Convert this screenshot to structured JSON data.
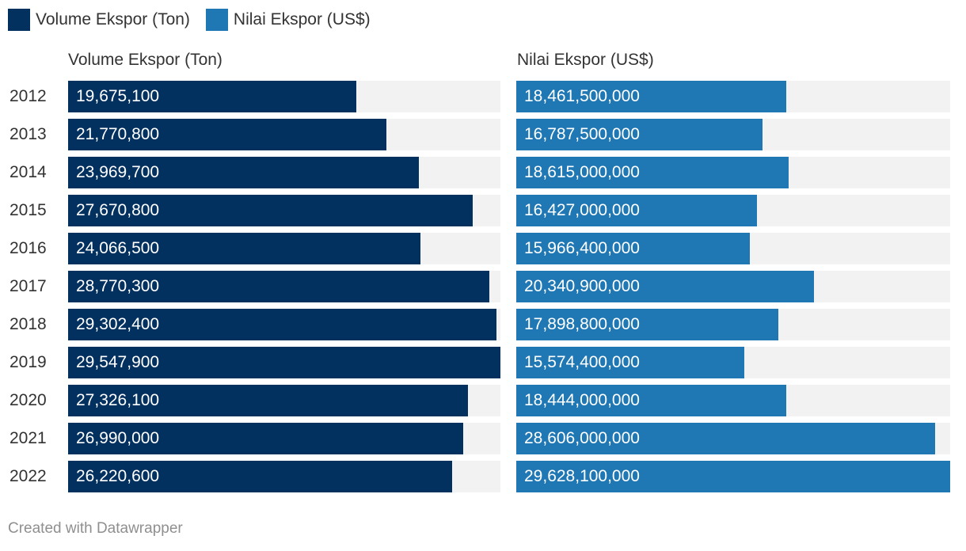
{
  "legend": [
    {
      "label": "Volume Ekspor (Ton)",
      "color": "#02305f"
    },
    {
      "label": "Nilai Ekspor (US$)",
      "color": "#1f77b4"
    }
  ],
  "footer": "Created with Datawrapper",
  "chart_data": {
    "type": "bar",
    "orientation": "horizontal",
    "categories": [
      "2012",
      "2013",
      "2014",
      "2015",
      "2016",
      "2017",
      "2018",
      "2019",
      "2020",
      "2021",
      "2022"
    ],
    "series": [
      {
        "name": "Volume Ekspor (Ton)",
        "color": "#02305f",
        "values": [
          19675100,
          21770800,
          23969700,
          27670800,
          24066500,
          28770300,
          29302400,
          29547900,
          27326100,
          26990000,
          26220600
        ],
        "labels": [
          "19,675,100",
          "21,770,800",
          "23,969,700",
          "27,670,800",
          "24,066,500",
          "28,770,300",
          "29,302,400",
          "29,547,900",
          "27,326,100",
          "26,990,000",
          "26,220,600"
        ]
      },
      {
        "name": "Nilai Ekspor (US$)",
        "color": "#1f77b4",
        "values": [
          18461500000,
          16787500000,
          18615000000,
          16427000000,
          15966400000,
          20340900000,
          17898800000,
          15574400000,
          18444000000,
          28606000000,
          29628100000
        ],
        "labels": [
          "18,461,500,000",
          "16,787,500,000",
          "18,615,000,000",
          "16,427,000,000",
          "15,966,400,000",
          "20,340,900,000",
          "17,898,800,000",
          "15,574,400,000",
          "18,444,000,000",
          "28,606,000,000",
          "29,628,100,000"
        ]
      }
    ],
    "track_color": "#f2f2f2",
    "legend_position": "top-left",
    "grid": false
  }
}
